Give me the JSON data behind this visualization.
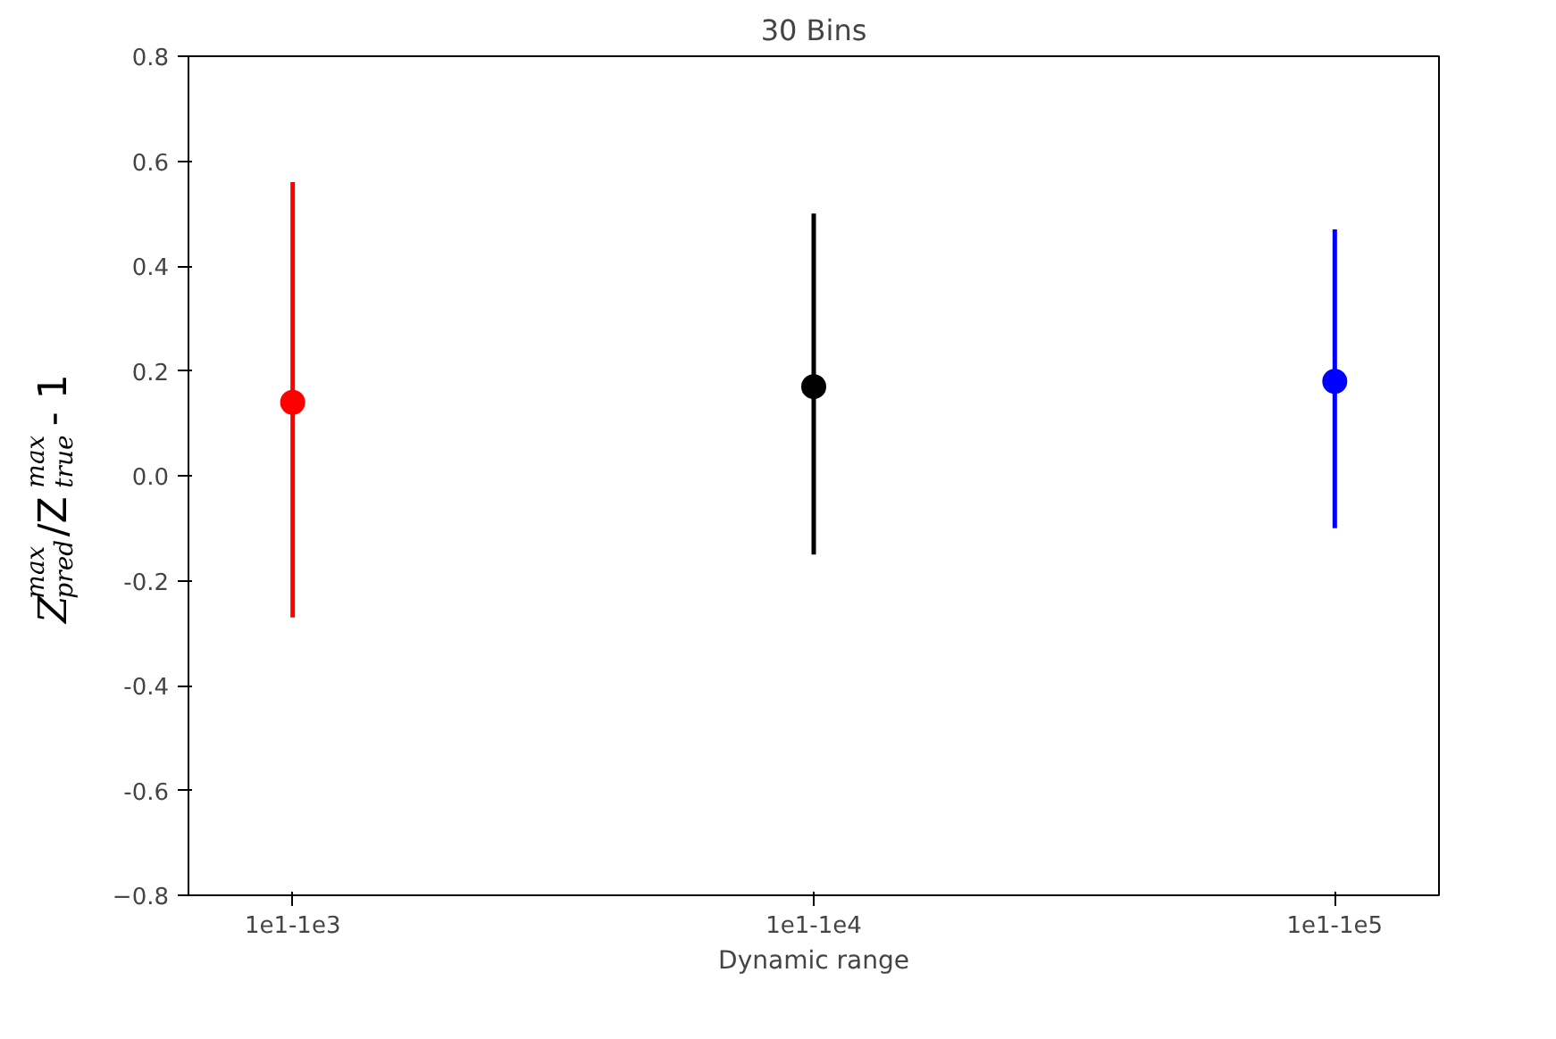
{
  "chart_data": {
    "type": "scatter",
    "title": "30 Bins",
    "xlabel": "Dynamic range",
    "ylabel": "Z$_{pred}$$^{max}$/Z$_{true}$$^{max}$ - 1",
    "categories": [
      "1e1-1e3",
      "1e1-1e4",
      "1e1-1e5"
    ],
    "values": [
      0.14,
      0.17,
      0.18
    ],
    "colors": [
      "#ff0000",
      "#000000",
      "#0000ff"
    ],
    "errors": [
      [
        -0.27,
        0.56
      ],
      [
        -0.15,
        0.5
      ],
      [
        -0.1,
        0.47
      ]
    ],
    "ylim": [
      -0.8,
      0.8
    ],
    "yticks": [
      0.8,
      0.6,
      0.4,
      0.2,
      {
        "value": 0.0,
        "label": "0.0"
      },
      -0.2,
      -0.4,
      -0.6,
      {
        "value": -0.8,
        "label": "−0.8"
      }
    ],
    "marker": "circle",
    "grid": false
  }
}
